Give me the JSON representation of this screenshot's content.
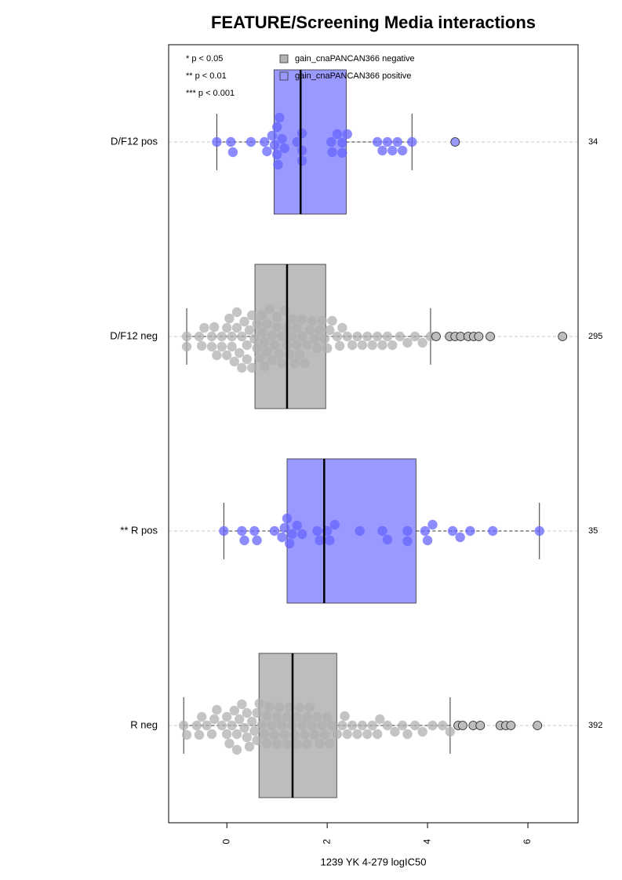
{
  "chart_data": {
    "type": "boxplot",
    "title": "FEATURE/Screening Media interactions",
    "xlabel": "1239 YK 4-279 logIC50",
    "xlim": [
      -1.16,
      7.0
    ],
    "xticks": [
      0,
      2,
      4,
      6
    ],
    "notes": [
      "* p < 0.05",
      "** p < 0.01",
      "*** p < 0.001"
    ],
    "legend": [
      {
        "name": "gain_cnaPANCAN366 negative",
        "color": "#b3b3b3"
      },
      {
        "name": "gain_cnaPANCAN366 positive",
        "color": "#9999ff"
      }
    ],
    "groups": [
      {
        "name": "D/F12 pos",
        "count": "34",
        "color": "#9999ff",
        "point_color": "#6666ff",
        "whisker_low": -0.2,
        "q1": 0.94,
        "median": 1.47,
        "q3": 2.38,
        "whisker_high": 3.69,
        "outliers": [
          4.55
        ],
        "points": [
          -0.2,
          0.08,
          0.12,
          0.48,
          0.75,
          0.8,
          0.9,
          0.95,
          1.0,
          1.0,
          1.02,
          1.05,
          1.1,
          1.15,
          1.4,
          1.5,
          1.5,
          1.5,
          2.08,
          2.1,
          2.2,
          2.3,
          2.3,
          2.4,
          3.0,
          3.1,
          3.2,
          3.3,
          3.4,
          3.5,
          3.69
        ]
      },
      {
        "name": "D/F12 neg",
        "count": "295",
        "color": "#bdbdbd",
        "point_color": "#b0b0b0",
        "whisker_low": -0.8,
        "q1": 0.56,
        "median": 1.2,
        "q3": 1.97,
        "whisker_high": 4.06,
        "outliers": [
          4.17,
          4.44,
          4.55,
          4.66,
          4.81,
          4.92,
          5.02,
          5.25,
          6.69
        ],
        "points": [
          -0.8,
          -0.8,
          -0.55,
          -0.5,
          -0.45,
          -0.3,
          -0.3,
          -0.25,
          -0.2,
          -0.1,
          -0.1,
          0,
          0,
          0.05,
          0.1,
          0.1,
          0.15,
          0.2,
          0.2,
          0.25,
          0.3,
          0.3,
          0.35,
          0.4,
          0.4,
          0.45,
          0.5,
          0.5,
          0.55,
          0.6,
          0.6,
          0.65,
          0.7,
          0.7,
          0.75,
          0.75,
          0.8,
          0.8,
          0.85,
          0.9,
          0.9,
          0.95,
          1.0,
          1.0,
          1.05,
          1.1,
          1.1,
          1.15,
          1.2,
          1.2,
          1.25,
          1.3,
          1.3,
          1.35,
          1.4,
          1.4,
          1.45,
          1.5,
          1.5,
          1.55,
          1.6,
          1.65,
          1.7,
          1.75,
          1.8,
          1.85,
          1.9,
          1.95,
          2.0,
          2.05,
          2.1,
          2.2,
          2.25,
          2.3,
          2.4,
          2.5,
          2.6,
          2.7,
          2.8,
          2.9,
          3.0,
          3.1,
          3.2,
          3.3,
          3.45,
          3.6,
          3.75,
          3.9,
          4.06
        ]
      },
      {
        "name": "** R pos",
        "count": "35",
        "color": "#9999ff",
        "point_color": "#6666ff",
        "whisker_low": -0.06,
        "q1": 1.2,
        "median": 1.94,
        "q3": 3.77,
        "whisker_high": 6.23,
        "outliers": [],
        "points": [
          -0.06,
          0.3,
          0.35,
          0.55,
          0.6,
          0.95,
          1.1,
          1.15,
          1.2,
          1.25,
          1.3,
          1.4,
          1.5,
          1.8,
          1.85,
          2.0,
          2.05,
          2.15,
          2.65,
          3.1,
          3.2,
          3.6,
          3.6,
          3.95,
          4.0,
          4.1,
          4.5,
          4.65,
          4.85,
          5.3,
          6.23
        ]
      },
      {
        "name": "R neg",
        "count": "392",
        "color": "#bdbdbd",
        "point_color": "#b0b0b0",
        "whisker_low": -0.86,
        "q1": 0.64,
        "median": 1.31,
        "q3": 2.19,
        "whisker_high": 4.45,
        "outliers": [
          4.61,
          4.7,
          4.91,
          5.05,
          5.45,
          5.56,
          5.66,
          6.19
        ],
        "points": [
          -0.86,
          -0.8,
          -0.6,
          -0.55,
          -0.5,
          -0.4,
          -0.3,
          -0.25,
          -0.2,
          -0.1,
          0,
          0,
          0.05,
          0.1,
          0.15,
          0.2,
          0.2,
          0.25,
          0.3,
          0.35,
          0.4,
          0.4,
          0.45,
          0.5,
          0.55,
          0.6,
          0.6,
          0.65,
          0.7,
          0.75,
          0.8,
          0.8,
          0.85,
          0.9,
          0.95,
          1.0,
          1.0,
          1.05,
          1.1,
          1.15,
          1.2,
          1.2,
          1.25,
          1.3,
          1.35,
          1.4,
          1.4,
          1.45,
          1.5,
          1.55,
          1.6,
          1.6,
          1.65,
          1.7,
          1.75,
          1.8,
          1.85,
          1.9,
          1.95,
          2.0,
          2.05,
          2.1,
          2.2,
          2.3,
          2.35,
          2.4,
          2.5,
          2.6,
          2.7,
          2.8,
          2.9,
          3.0,
          3.05,
          3.2,
          3.35,
          3.5,
          3.6,
          3.75,
          3.9,
          4.1,
          4.3,
          4.45
        ]
      }
    ]
  }
}
